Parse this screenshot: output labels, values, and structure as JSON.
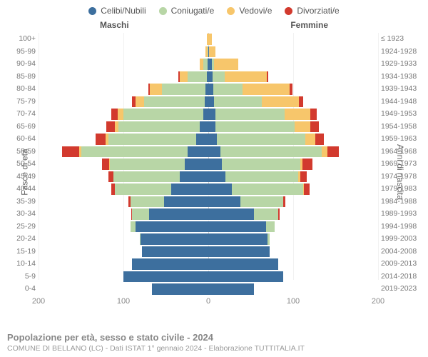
{
  "chart": {
    "type": "population-pyramid",
    "background_color": "#ffffff",
    "legend": [
      {
        "label": "Celibi/Nubili",
        "color": "#3d6f9e"
      },
      {
        "label": "Coniugati/e",
        "color": "#b8d6a6"
      },
      {
        "label": "Vedovi/e",
        "color": "#f7c66b"
      },
      {
        "label": "Divorziati/e",
        "color": "#d23a2e"
      }
    ],
    "headers": {
      "male": "Maschi",
      "female": "Femmine"
    },
    "y_left_title": "Fasce di età",
    "y_right_title": "Anni di nascita",
    "xmax": 200,
    "xticks": [
      200,
      100,
      0,
      100,
      200
    ],
    "label_fontsize": 10.5,
    "tick_fontsize": 11,
    "grid_color": "#f1f1f1",
    "centerline_color": "#cfcfcf",
    "rows": [
      {
        "age": "100+",
        "birth": "≤ 1923",
        "m": {
          "s": 0,
          "m": 0,
          "w": 2,
          "d": 0
        },
        "f": {
          "s": 0,
          "m": 0,
          "w": 4,
          "d": 0
        }
      },
      {
        "age": "95-99",
        "birth": "1924-1928",
        "m": {
          "s": 0,
          "m": 1,
          "w": 2,
          "d": 0
        },
        "f": {
          "s": 1,
          "m": 0,
          "w": 7,
          "d": 0
        }
      },
      {
        "age": "90-94",
        "birth": "1929-1933",
        "m": {
          "s": 1,
          "m": 5,
          "w": 4,
          "d": 0
        },
        "f": {
          "s": 4,
          "m": 3,
          "w": 28,
          "d": 0
        }
      },
      {
        "age": "85-89",
        "birth": "1934-1938",
        "m": {
          "s": 2,
          "m": 22,
          "w": 10,
          "d": 1
        },
        "f": {
          "s": 5,
          "m": 14,
          "w": 50,
          "d": 2
        }
      },
      {
        "age": "80-84",
        "birth": "1939-1943",
        "m": {
          "s": 3,
          "m": 52,
          "w": 14,
          "d": 2
        },
        "f": {
          "s": 6,
          "m": 34,
          "w": 56,
          "d": 3
        }
      },
      {
        "age": "75-79",
        "birth": "1944-1948",
        "m": {
          "s": 4,
          "m": 72,
          "w": 10,
          "d": 4
        },
        "f": {
          "s": 7,
          "m": 56,
          "w": 44,
          "d": 5
        }
      },
      {
        "age": "70-74",
        "birth": "1949-1953",
        "m": {
          "s": 6,
          "m": 94,
          "w": 7,
          "d": 7
        },
        "f": {
          "s": 8,
          "m": 82,
          "w": 30,
          "d": 8
        }
      },
      {
        "age": "65-69",
        "birth": "1954-1958",
        "m": {
          "s": 10,
          "m": 96,
          "w": 4,
          "d": 10
        },
        "f": {
          "s": 8,
          "m": 94,
          "w": 18,
          "d": 10
        }
      },
      {
        "age": "60-64",
        "birth": "1959-1963",
        "m": {
          "s": 14,
          "m": 104,
          "w": 3,
          "d": 12
        },
        "f": {
          "s": 10,
          "m": 104,
          "w": 12,
          "d": 10
        }
      },
      {
        "age": "55-59",
        "birth": "1964-1968",
        "m": {
          "s": 24,
          "m": 126,
          "w": 2,
          "d": 20
        },
        "f": {
          "s": 14,
          "m": 120,
          "w": 6,
          "d": 14
        }
      },
      {
        "age": "50-54",
        "birth": "1969-1973",
        "m": {
          "s": 28,
          "m": 88,
          "w": 1,
          "d": 8
        },
        "f": {
          "s": 16,
          "m": 92,
          "w": 3,
          "d": 12
        }
      },
      {
        "age": "45-49",
        "birth": "1974-1978",
        "m": {
          "s": 34,
          "m": 78,
          "w": 0,
          "d": 6
        },
        "f": {
          "s": 20,
          "m": 86,
          "w": 2,
          "d": 8
        }
      },
      {
        "age": "40-44",
        "birth": "1979-1983",
        "m": {
          "s": 44,
          "m": 66,
          "w": 0,
          "d": 4
        },
        "f": {
          "s": 28,
          "m": 84,
          "w": 1,
          "d": 6
        }
      },
      {
        "age": "35-39",
        "birth": "1984-1988",
        "m": {
          "s": 52,
          "m": 40,
          "w": 0,
          "d": 2
        },
        "f": {
          "s": 38,
          "m": 50,
          "w": 0,
          "d": 3
        }
      },
      {
        "age": "30-34",
        "birth": "1989-1993",
        "m": {
          "s": 70,
          "m": 20,
          "w": 0,
          "d": 1
        },
        "f": {
          "s": 54,
          "m": 28,
          "w": 0,
          "d": 2
        }
      },
      {
        "age": "25-29",
        "birth": "1994-1998",
        "m": {
          "s": 86,
          "m": 6,
          "w": 0,
          "d": 0
        },
        "f": {
          "s": 68,
          "m": 10,
          "w": 0,
          "d": 0
        }
      },
      {
        "age": "20-24",
        "birth": "1999-2003",
        "m": {
          "s": 80,
          "m": 1,
          "w": 0,
          "d": 0
        },
        "f": {
          "s": 70,
          "m": 2,
          "w": 0,
          "d": 0
        }
      },
      {
        "age": "15-19",
        "birth": "2004-2008",
        "m": {
          "s": 78,
          "m": 0,
          "w": 0,
          "d": 0
        },
        "f": {
          "s": 72,
          "m": 0,
          "w": 0,
          "d": 0
        }
      },
      {
        "age": "10-14",
        "birth": "2009-2013",
        "m": {
          "s": 90,
          "m": 0,
          "w": 0,
          "d": 0
        },
        "f": {
          "s": 82,
          "m": 0,
          "w": 0,
          "d": 0
        }
      },
      {
        "age": "5-9",
        "birth": "2014-2018",
        "m": {
          "s": 100,
          "m": 0,
          "w": 0,
          "d": 0
        },
        "f": {
          "s": 88,
          "m": 0,
          "w": 0,
          "d": 0
        }
      },
      {
        "age": "0-4",
        "birth": "2019-2023",
        "m": {
          "s": 66,
          "m": 0,
          "w": 0,
          "d": 0
        },
        "f": {
          "s": 54,
          "m": 0,
          "w": 0,
          "d": 0
        }
      }
    ]
  },
  "footer": {
    "title": "Popolazione per età, sesso e stato civile - 2024",
    "subtitle": "COMUNE DI BELLANO (LC) - Dati ISTAT 1° gennaio 2024 - Elaborazione TUTTITALIA.IT"
  }
}
